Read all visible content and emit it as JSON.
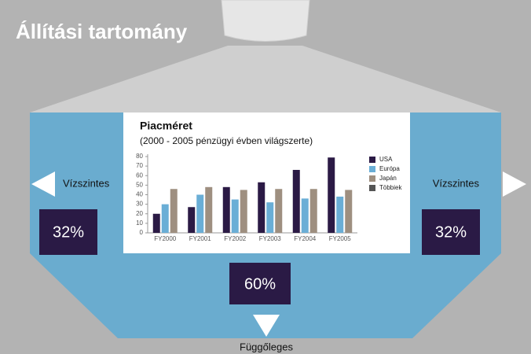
{
  "header": {
    "title": "Állítási tartomány"
  },
  "left": {
    "label": "Vízszintes",
    "value": "32%"
  },
  "right": {
    "label": "Vízszintes",
    "value": "32%"
  },
  "bottom": {
    "label": "Függőleges",
    "value": "60%"
  },
  "chart_data": {
    "type": "bar",
    "title": "Piacméret",
    "subtitle": "(2000 - 2005 pénzügyi évben világszerte)",
    "categories": [
      "FY2000",
      "FY2001",
      "FY2002",
      "FY2003",
      "FY2004",
      "FY2005"
    ],
    "series": [
      {
        "name": "USA",
        "color": "#2b1a45",
        "values": [
          20,
          27,
          48,
          53,
          66,
          79
        ]
      },
      {
        "name": "Európa",
        "color": "#6aaed6",
        "values": [
          30,
          40,
          35,
          32,
          36,
          38
        ]
      },
      {
        "name": "Japán",
        "color": "#9e8f80",
        "values": [
          46,
          48,
          45,
          46,
          46,
          45
        ]
      },
      {
        "name": "Többiek",
        "color": "#555555",
        "values": [
          null,
          null,
          null,
          null,
          null,
          null
        ]
      }
    ],
    "ylim": [
      0,
      80
    ],
    "yticks": [
      0,
      10,
      20,
      30,
      40,
      50,
      60,
      70,
      80
    ],
    "grid": false
  }
}
